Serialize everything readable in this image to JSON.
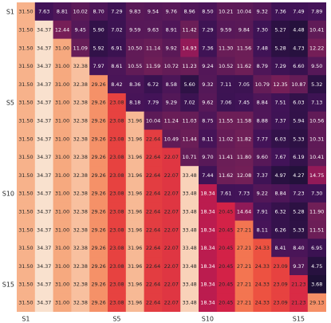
{
  "chart_data": {
    "type": "heatmap",
    "title": "",
    "xlabel": "",
    "ylabel": "",
    "x_tick_labels": [
      {
        "index": 0,
        "label": "S1"
      },
      {
        "index": 5,
        "label": "S5"
      },
      {
        "index": 10,
        "label": "S10"
      },
      {
        "index": 15,
        "label": "S15"
      }
    ],
    "y_tick_labels": [
      {
        "index": 0,
        "label": "S1"
      },
      {
        "index": 5,
        "label": "S5"
      },
      {
        "index": 10,
        "label": "S10"
      },
      {
        "index": 15,
        "label": "S15"
      }
    ],
    "colormap": "rocket",
    "color_range": [
      0,
      35
    ],
    "matrix": [
      [
        "31.50",
        "7.63",
        "8.81",
        "10.02",
        "8.70",
        "7.29",
        "9.83",
        "9.54",
        "9.76",
        "8.96",
        "8.50",
        "10.21",
        "10.04",
        "9.32",
        "7.36",
        "7.49",
        "7.89"
      ],
      [
        "31.50",
        "34.37",
        "12.44",
        "9.45",
        "5.90",
        "7.02",
        "9.59",
        "9.63",
        "8.91",
        "11.42",
        "7.29",
        "9.59",
        "9.84",
        "7.30",
        "5.27",
        "4.48",
        "10.41"
      ],
      [
        "31.50",
        "34.37",
        "31.00",
        "11.09",
        "5.92",
        "6.91",
        "10.50",
        "11.14",
        "9.92",
        "14.93",
        "7.36",
        "11.30",
        "11.56",
        "7.48",
        "5.28",
        "4.73",
        "12.22"
      ],
      [
        "31.50",
        "34.37",
        "31.00",
        "32.38",
        "7.97",
        "8.61",
        "10.55",
        "11.59",
        "10.72",
        "11.23",
        "9.24",
        "10.52",
        "11.62",
        "8.79",
        "7.29",
        "6.60",
        "9.50"
      ],
      [
        "31.50",
        "34.37",
        "31.00",
        "32.38",
        "29.26",
        "8.42",
        "8.36",
        "6.72",
        "8.58",
        "5.60",
        "9.32",
        "7.11",
        "7.05",
        "10.79",
        "12.35",
        "10.87",
        "5.32"
      ],
      [
        "31.50",
        "34.37",
        "31.00",
        "32.38",
        "29.26",
        "23.08",
        "8.18",
        "7.79",
        "9.29",
        "7.02",
        "9.62",
        "7.06",
        "7.45",
        "8.84",
        "7.51",
        "6.03",
        "7.13"
      ],
      [
        "31.50",
        "34.37",
        "31.00",
        "32.38",
        "29.26",
        "23.08",
        "31.96",
        "10.04",
        "11.24",
        "11.03",
        "8.75",
        "11.55",
        "11.58",
        "8.88",
        "7.37",
        "5.94",
        "10.56"
      ],
      [
        "31.50",
        "34.37",
        "31.00",
        "32.38",
        "29.26",
        "23.08",
        "31.96",
        "22.64",
        "10.49",
        "11.44",
        "8.11",
        "11.02",
        "11.82",
        "7.77",
        "6.03",
        "5.33",
        "10.31"
      ],
      [
        "31.50",
        "34.37",
        "31.00",
        "32.38",
        "29.26",
        "23.08",
        "31.96",
        "22.64",
        "22.07",
        "10.71",
        "9.70",
        "11.41",
        "11.80",
        "9.60",
        "7.67",
        "6.19",
        "10.41"
      ],
      [
        "31.50",
        "34.37",
        "31.00",
        "32.38",
        "29.26",
        "23.08",
        "31.96",
        "22.64",
        "22.07",
        "33.48",
        "7.44",
        "11.62",
        "12.08",
        "7.37",
        "4.97",
        "4.27",
        "14.75"
      ],
      [
        "31.50",
        "34.37",
        "31.00",
        "32.38",
        "29.26",
        "23.08",
        "31.96",
        "22.64",
        "22.07",
        "33.48",
        "18.34",
        "7.61",
        "7.73",
        "9.22",
        "8.84",
        "7.23",
        "7.30"
      ],
      [
        "31.50",
        "34.37",
        "31.00",
        "32.38",
        "29.26",
        "23.08",
        "31.96",
        "22.64",
        "22.07",
        "33.48",
        "18.34",
        "20.45",
        "14.64",
        "7.91",
        "6.32",
        "5.28",
        "11.90"
      ],
      [
        "31.50",
        "34.37",
        "31.00",
        "32.38",
        "29.26",
        "23.08",
        "31.96",
        "22.64",
        "22.07",
        "33.48",
        "18.34",
        "20.45",
        "27.21",
        "8.11",
        "6.26",
        "5.33",
        "11.51"
      ],
      [
        "31.50",
        "34.37",
        "31.00",
        "32.38",
        "29.26",
        "23.08",
        "31.96",
        "22.64",
        "22.07",
        "33.48",
        "18.34",
        "20.45",
        "27.21",
        "24.33",
        "8.41",
        "8.40",
        "6.95"
      ],
      [
        "31.50",
        "34.37",
        "31.00",
        "32.38",
        "29.26",
        "23.08",
        "31.96",
        "22.64",
        "22.07",
        "33.48",
        "18.34",
        "20.45",
        "27.21",
        "24.33",
        "23.09",
        "9.37",
        "4.75"
      ],
      [
        "31.50",
        "34.37",
        "31.00",
        "32.38",
        "29.26",
        "23.08",
        "31.96",
        "22.64",
        "22.07",
        "33.48",
        "18.34",
        "20.45",
        "27.21",
        "24.33",
        "23.09",
        "21.23",
        "3.68"
      ],
      [
        "31.50",
        "34.37",
        "31.00",
        "32.38",
        "29.26",
        "23.08",
        "31.96",
        "22.64",
        "22.07",
        "33.48",
        "18.34",
        "20.45",
        "27.21",
        "24.33",
        "23.09",
        "21.23",
        "29.13"
      ]
    ]
  }
}
